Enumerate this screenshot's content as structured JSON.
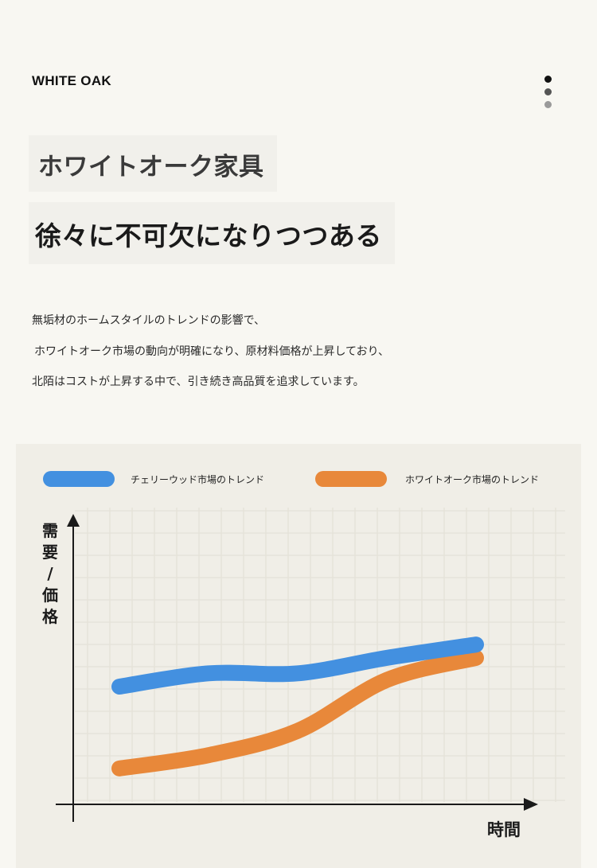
{
  "brand": "WHITE OAK",
  "heading": {
    "line1": "ホワイトオーク家具",
    "line2": "徐々に不可欠になりつつある"
  },
  "paragraph": [
    "無垢材のホームスタイルのトレンドの影響で、",
    "ホワイトオーク市場の動向が明確になり、原材料価格が上昇しており、",
    "北陌はコストが上昇する中で、引き続き高品質を追求しています。"
  ],
  "pager_dots": [
    {
      "color": "#111111",
      "active": true
    },
    {
      "color": "#555555",
      "active": false
    },
    {
      "color": "#9a9a9a",
      "active": false
    }
  ],
  "colors": {
    "background": "#f8f7f2",
    "chart_background": "#f0eee7",
    "cherry": "#4390e0",
    "white_oak": "#e8883a",
    "axis": "#1a1a1a"
  },
  "chart_data": {
    "type": "line",
    "title": "",
    "ylabel": "需要/価格",
    "ylabel_chars": [
      "需",
      "要",
      "/",
      "価",
      "格"
    ],
    "xlabel": "時間",
    "grid": true,
    "legend_position": "top",
    "axis_ticks": "none",
    "xlim": [
      0,
      10
    ],
    "ylim": [
      0,
      10
    ],
    "series": [
      {
        "name": "チェリーウッド市場のトレンド",
        "color": "#4390e0",
        "x": [
          0,
          2.5,
          5,
          7.5,
          10
        ],
        "y": [
          5.0,
          5.6,
          5.6,
          6.3,
          6.9
        ]
      },
      {
        "name": "ホワイトオーク市場のトレンド",
        "color": "#e8883a",
        "x": [
          0,
          2.5,
          5,
          7.5,
          10
        ],
        "y": [
          1.3,
          1.9,
          3.0,
          5.3,
          6.3
        ]
      }
    ]
  }
}
